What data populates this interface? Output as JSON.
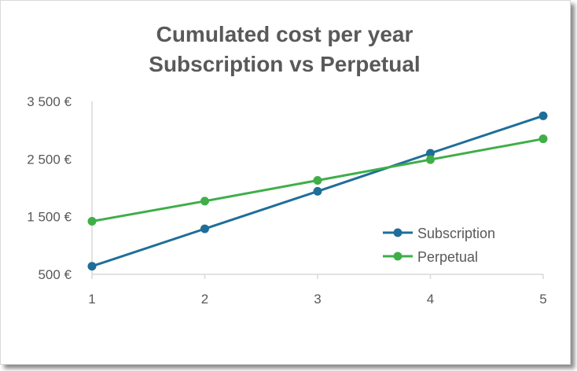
{
  "chart_data": {
    "type": "line",
    "title_lines": [
      "Cumulated cost per year",
      "Subscription vs Perpetual"
    ],
    "x": [
      1,
      2,
      3,
      4,
      5
    ],
    "x_tick_labels": [
      "1",
      "2",
      "3",
      "4",
      "5"
    ],
    "y_tick_labels": [
      "3 500 €",
      "2 500 €",
      "1 500 €",
      "500 €"
    ],
    "y_ticks": [
      3500,
      2500,
      1500,
      500
    ],
    "ylim": [
      500,
      3500
    ],
    "grid": false,
    "legend_position": "bottom-right",
    "series": [
      {
        "name": "Subscription",
        "color": "#1f6e99",
        "values": [
          640,
          1290,
          1940,
          2600,
          3250
        ]
      },
      {
        "name": "Perpetual",
        "color": "#3fae49",
        "values": [
          1420,
          1770,
          2130,
          2490,
          2850
        ]
      }
    ],
    "axis_color": "#d9d9d9"
  }
}
